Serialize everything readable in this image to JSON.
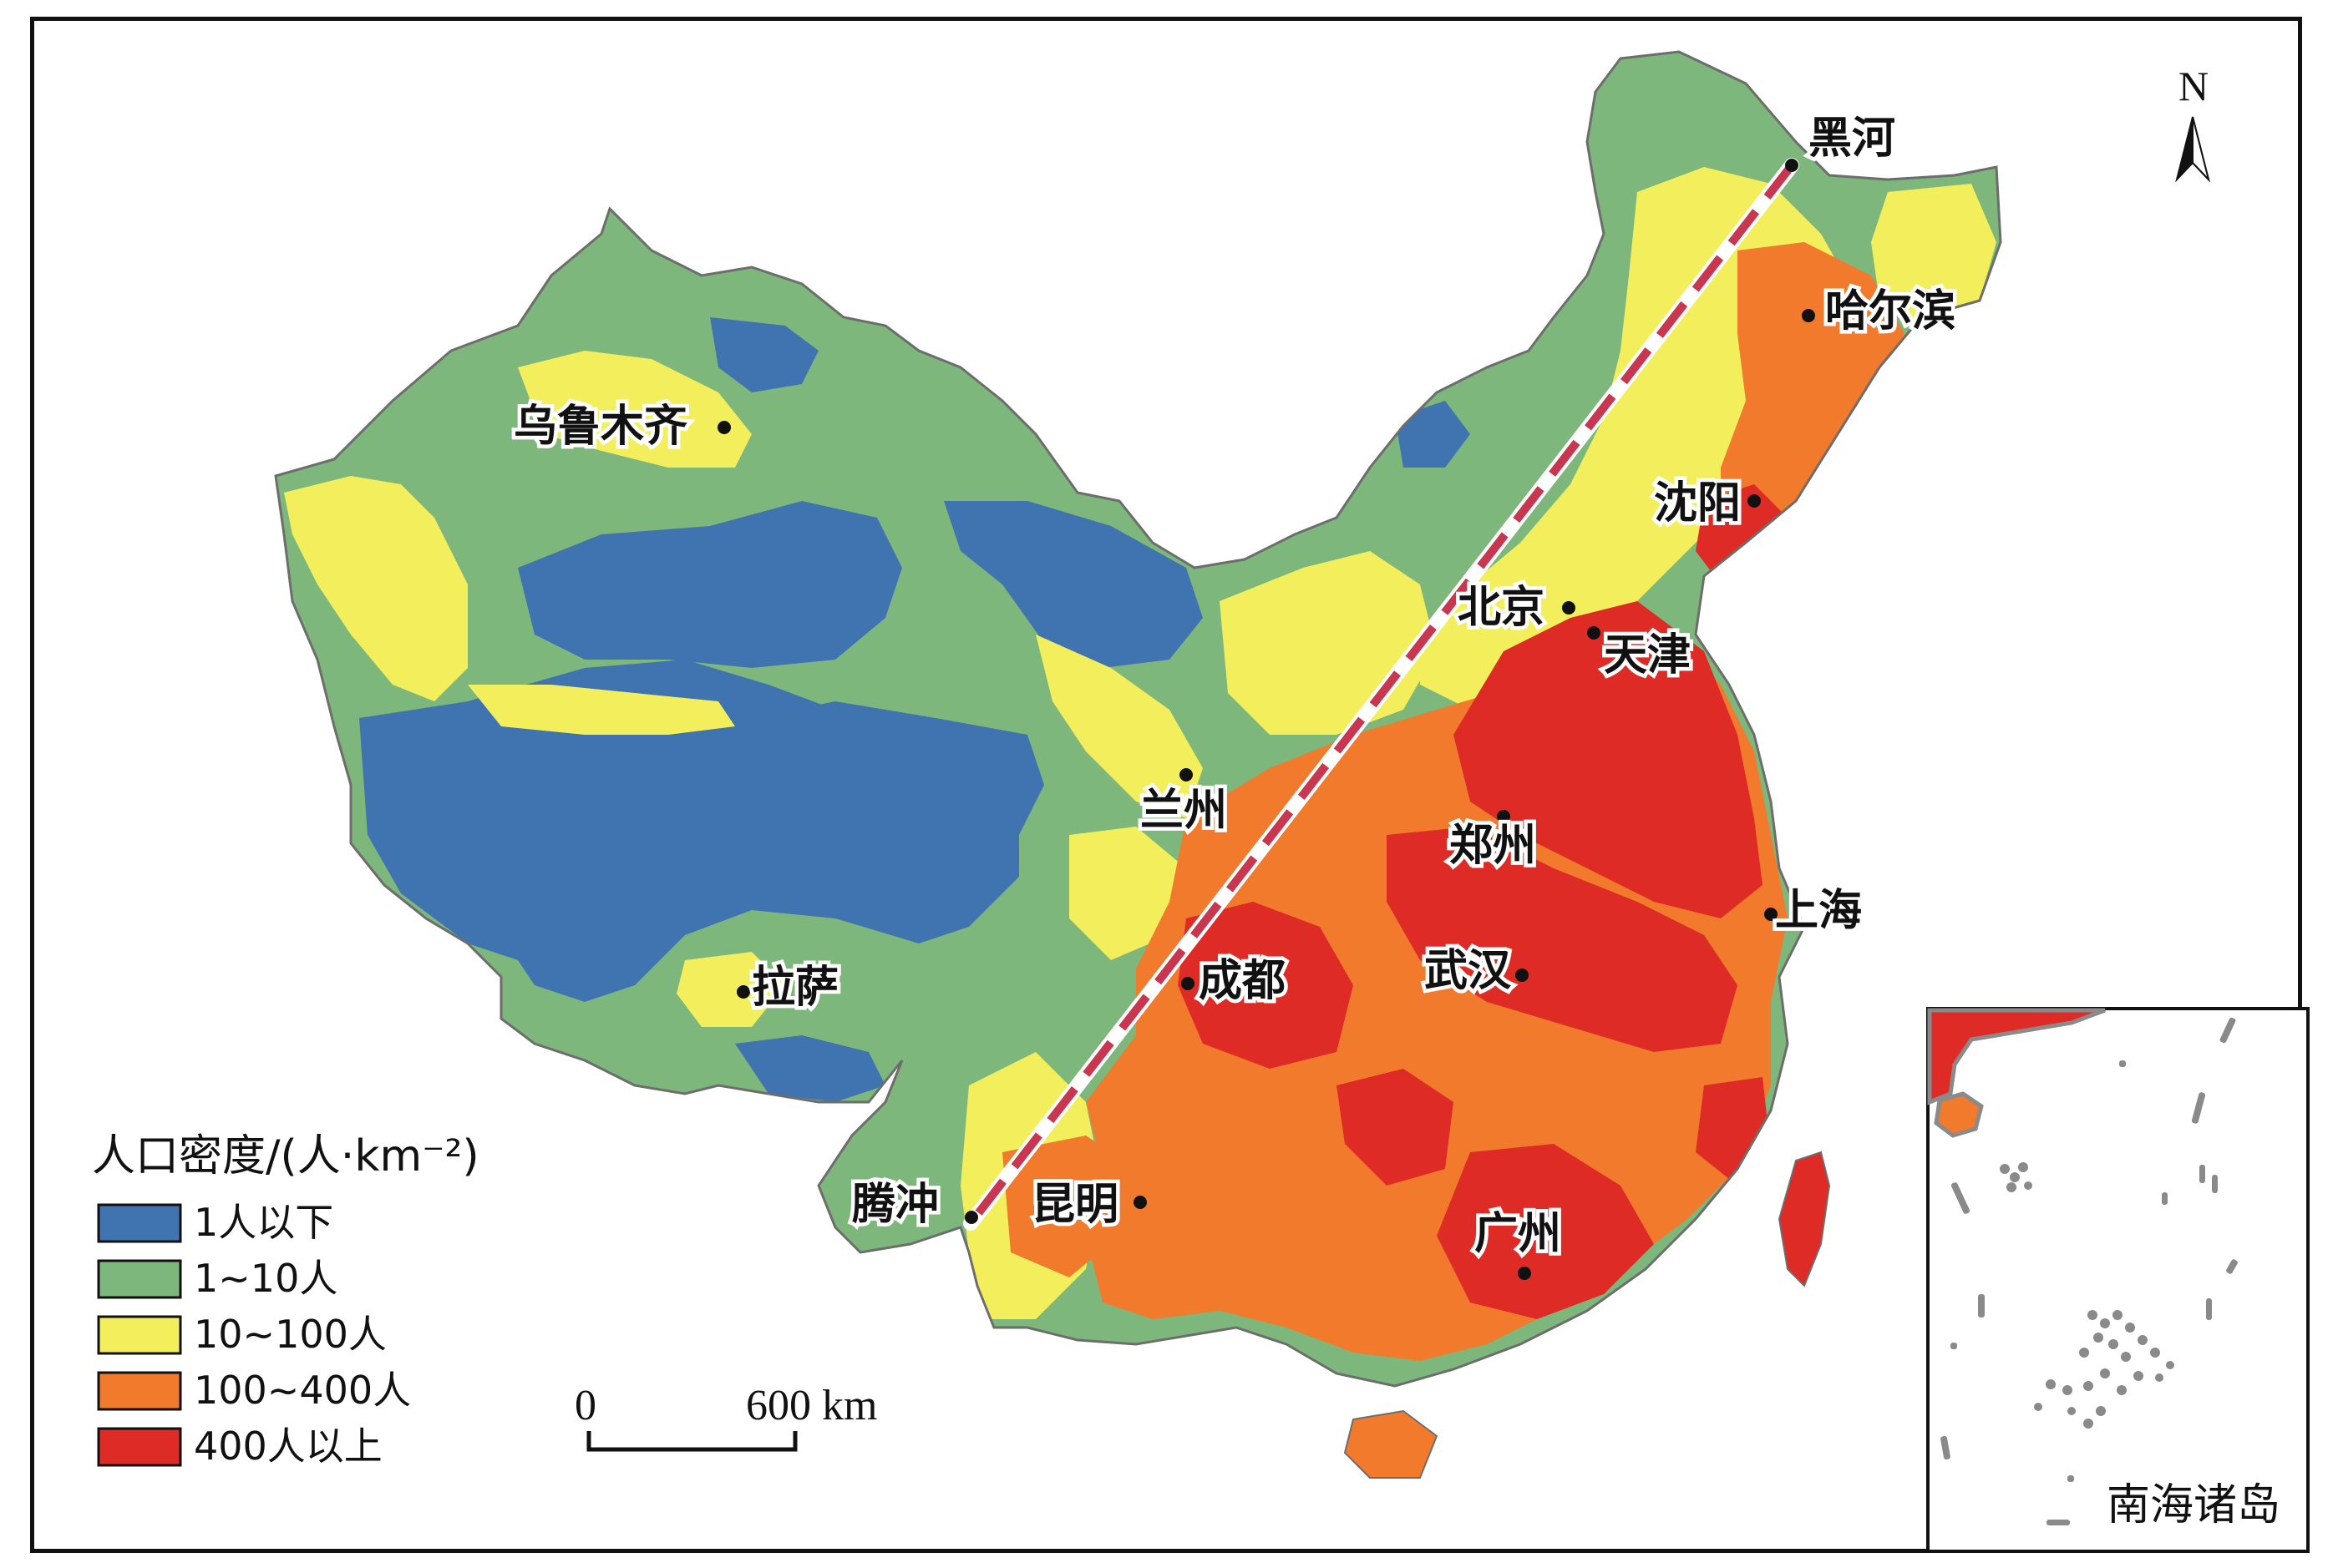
{
  "north_arrow": {
    "label": "N"
  },
  "cities": [
    {
      "id": "heihe",
      "name": "黑河"
    },
    {
      "id": "haerbin",
      "name": "哈尔滨"
    },
    {
      "id": "shenyang",
      "name": "沈阳"
    },
    {
      "id": "beijing",
      "name": "北京"
    },
    {
      "id": "tianjin",
      "name": "天津"
    },
    {
      "id": "wulumuqi",
      "name": "乌鲁木齐"
    },
    {
      "id": "lanzhou",
      "name": "兰州"
    },
    {
      "id": "zhengzhou",
      "name": "郑州"
    },
    {
      "id": "shanghai",
      "name": "上海"
    },
    {
      "id": "chengdu",
      "name": "成都"
    },
    {
      "id": "wuhan",
      "name": "武汉"
    },
    {
      "id": "lasa",
      "name": "拉萨"
    },
    {
      "id": "tengchong",
      "name": "腾冲"
    },
    {
      "id": "kunming",
      "name": "昆明"
    },
    {
      "id": "guangzhou",
      "name": "广州"
    }
  ],
  "legend": {
    "title": "人口密度/(人·km⁻²)",
    "items": [
      {
        "label": "1人以下",
        "color": "#3f74b0"
      },
      {
        "label": "1~10人",
        "color": "#7db77b"
      },
      {
        "label": "10~100人",
        "color": "#f3ef5c"
      },
      {
        "label": "100~400人",
        "color": "#f17a2c"
      },
      {
        "label": "400人以上",
        "color": "#df2b26"
      }
    ]
  },
  "scale_bar": {
    "start_label": "0",
    "end_label": "600 km"
  },
  "inset": {
    "label": "南海诸岛"
  },
  "dividing_line_color": "#c8374f"
}
